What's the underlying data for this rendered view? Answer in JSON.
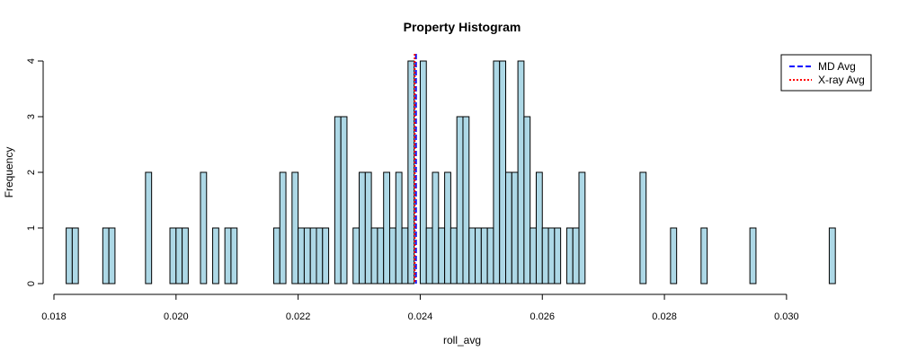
{
  "chart_data": {
    "type": "bar",
    "title": "Property Histogram",
    "xlabel": "roll_avg",
    "ylabel": "Frequency",
    "xlim": [
      0.018,
      0.0309
    ],
    "ylim": [
      0,
      4
    ],
    "x_ticks": [
      "0.018",
      "0.020",
      "0.022",
      "0.024",
      "0.026",
      "0.028",
      "0.030"
    ],
    "y_ticks": [
      "0",
      "1",
      "2",
      "3",
      "4"
    ],
    "bar_color": "#add8e6",
    "bin_width": 0.0001,
    "bins": [
      {
        "x0": 0.0182,
        "value": 1
      },
      {
        "x0": 0.0183,
        "value": 1
      },
      {
        "x0": 0.0188,
        "value": 1
      },
      {
        "x0": 0.0189,
        "value": 1
      },
      {
        "x0": 0.0195,
        "value": 2
      },
      {
        "x0": 0.0199,
        "value": 1
      },
      {
        "x0": 0.02,
        "value": 1
      },
      {
        "x0": 0.0201,
        "value": 1
      },
      {
        "x0": 0.0204,
        "value": 2
      },
      {
        "x0": 0.0206,
        "value": 1
      },
      {
        "x0": 0.0208,
        "value": 1
      },
      {
        "x0": 0.0209,
        "value": 1
      },
      {
        "x0": 0.0216,
        "value": 1
      },
      {
        "x0": 0.0217,
        "value": 2
      },
      {
        "x0": 0.0219,
        "value": 2
      },
      {
        "x0": 0.022,
        "value": 1
      },
      {
        "x0": 0.0221,
        "value": 1
      },
      {
        "x0": 0.0222,
        "value": 1
      },
      {
        "x0": 0.0223,
        "value": 1
      },
      {
        "x0": 0.0224,
        "value": 1
      },
      {
        "x0": 0.0226,
        "value": 3
      },
      {
        "x0": 0.0227,
        "value": 3
      },
      {
        "x0": 0.0229,
        "value": 1
      },
      {
        "x0": 0.023,
        "value": 2
      },
      {
        "x0": 0.0231,
        "value": 2
      },
      {
        "x0": 0.0232,
        "value": 1
      },
      {
        "x0": 0.0233,
        "value": 1
      },
      {
        "x0": 0.0234,
        "value": 2
      },
      {
        "x0": 0.0235,
        "value": 1
      },
      {
        "x0": 0.0236,
        "value": 2
      },
      {
        "x0": 0.0237,
        "value": 1
      },
      {
        "x0": 0.0238,
        "value": 4
      },
      {
        "x0": 0.024,
        "value": 4
      },
      {
        "x0": 0.0241,
        "value": 1
      },
      {
        "x0": 0.0242,
        "value": 2
      },
      {
        "x0": 0.0243,
        "value": 1
      },
      {
        "x0": 0.0244,
        "value": 2
      },
      {
        "x0": 0.0245,
        "value": 1
      },
      {
        "x0": 0.0246,
        "value": 3
      },
      {
        "x0": 0.0247,
        "value": 3
      },
      {
        "x0": 0.0248,
        "value": 1
      },
      {
        "x0": 0.0249,
        "value": 1
      },
      {
        "x0": 0.025,
        "value": 1
      },
      {
        "x0": 0.0251,
        "value": 1
      },
      {
        "x0": 0.0252,
        "value": 4
      },
      {
        "x0": 0.0253,
        "value": 4
      },
      {
        "x0": 0.0254,
        "value": 2
      },
      {
        "x0": 0.0255,
        "value": 2
      },
      {
        "x0": 0.0256,
        "value": 4
      },
      {
        "x0": 0.0257,
        "value": 3
      },
      {
        "x0": 0.0258,
        "value": 1
      },
      {
        "x0": 0.0259,
        "value": 2
      },
      {
        "x0": 0.026,
        "value": 1
      },
      {
        "x0": 0.0261,
        "value": 1
      },
      {
        "x0": 0.0262,
        "value": 1
      },
      {
        "x0": 0.0264,
        "value": 1
      },
      {
        "x0": 0.0265,
        "value": 1
      },
      {
        "x0": 0.0266,
        "value": 2
      },
      {
        "x0": 0.0276,
        "value": 2
      },
      {
        "x0": 0.0281,
        "value": 1
      },
      {
        "x0": 0.0286,
        "value": 1
      },
      {
        "x0": 0.0294,
        "value": 1
      },
      {
        "x0": 0.0307,
        "value": 1
      }
    ],
    "vlines": [
      {
        "name": "MD Avg",
        "x": 0.02393,
        "color": "#0000ff",
        "style": "dashed"
      },
      {
        "name": "X-ray Avg",
        "x": 0.02391,
        "color": "#ff0000",
        "style": "dotted"
      }
    ],
    "legend": {
      "position": "top-right",
      "entries": [
        {
          "label": "MD Avg",
          "color": "#0000ff",
          "style": "dashed"
        },
        {
          "label": "X-ray Avg",
          "color": "#ff0000",
          "style": "dotted"
        }
      ]
    }
  }
}
